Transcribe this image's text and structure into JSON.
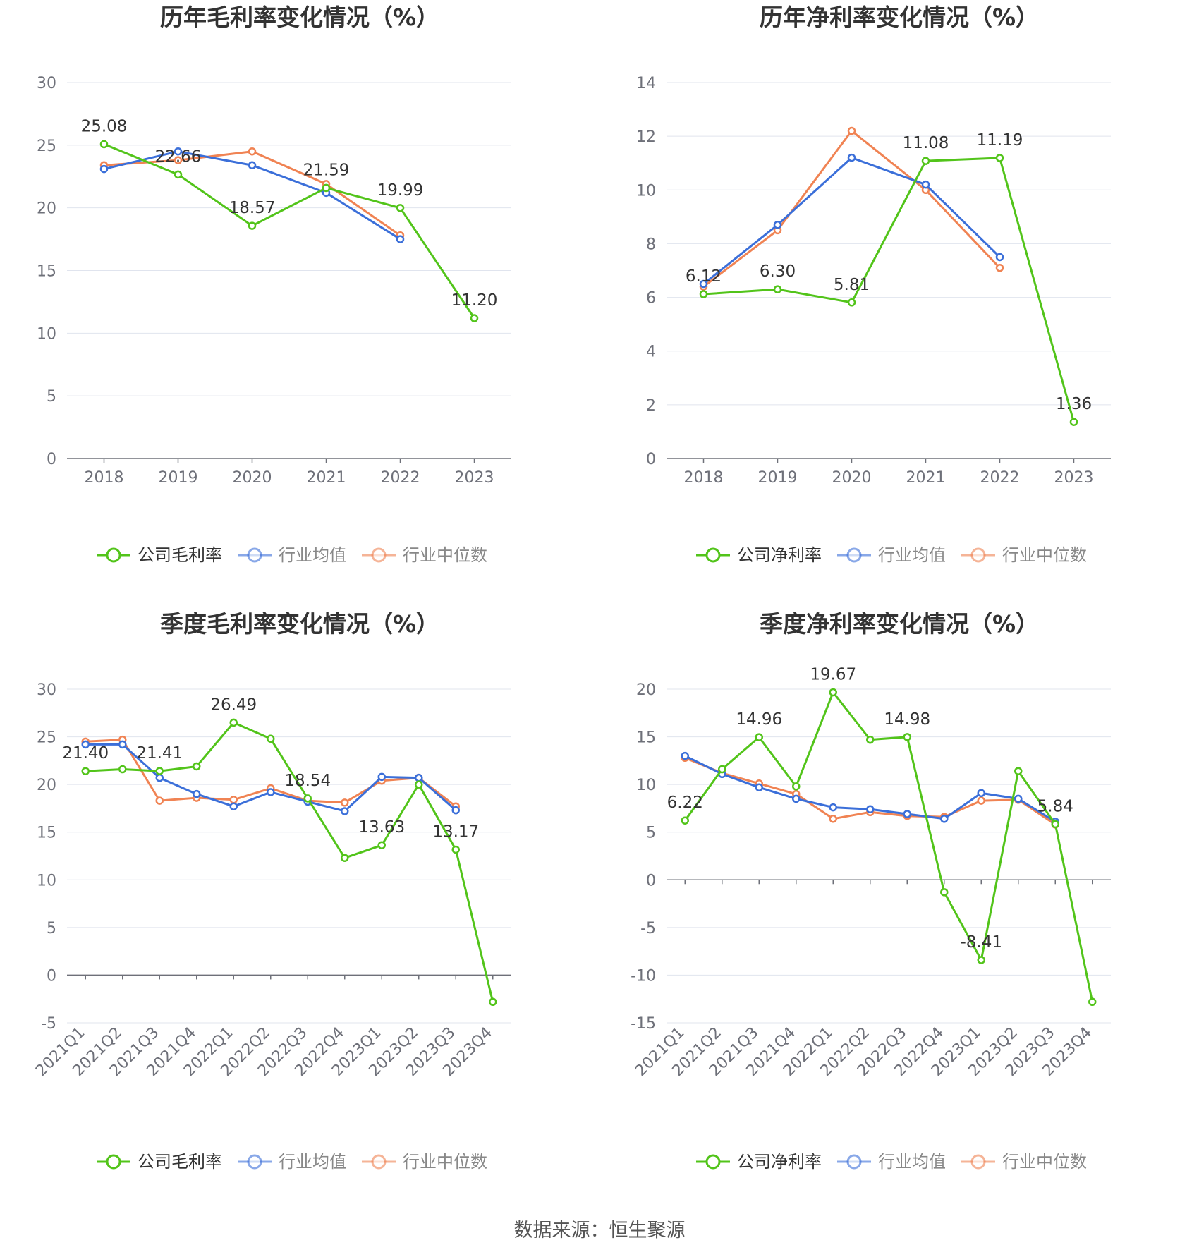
{
  "source_label": "数据来源：恒生聚源",
  "colors": {
    "company": "#52c41a",
    "avg": "#3b6fd9",
    "median": "#f08353",
    "grid": "#e0e4ee",
    "axis": "#6e7079",
    "label": "#333333"
  },
  "chart_data": [
    {
      "id": "annual-gross",
      "type": "line",
      "title": "历年毛利率变化情况（%）",
      "categories": [
        "2018",
        "2019",
        "2020",
        "2021",
        "2022",
        "2023"
      ],
      "ylim": [
        0,
        30
      ],
      "yticks": [
        0,
        5,
        10,
        15,
        20,
        25,
        30
      ],
      "legend_position": "bottom",
      "grid": true,
      "series": [
        {
          "name": "公司毛利率",
          "color": "#52c41a",
          "values": [
            25.08,
            22.66,
            18.57,
            21.59,
            19.99,
            11.2
          ],
          "labels": [
            "25.08",
            "22.66",
            "18.57",
            "21.59",
            "19.99",
            "11.20"
          ]
        },
        {
          "name": "行业均值",
          "color": "#3b6fd9",
          "values": [
            23.1,
            24.5,
            23.4,
            21.2,
            17.5,
            null
          ]
        },
        {
          "name": "行业中位数",
          "color": "#f08353",
          "values": [
            23.4,
            23.8,
            24.5,
            21.9,
            17.8,
            null
          ]
        }
      ]
    },
    {
      "id": "annual-net",
      "type": "line",
      "title": "历年净利率变化情况（%）",
      "categories": [
        "2018",
        "2019",
        "2020",
        "2021",
        "2022",
        "2023"
      ],
      "ylim": [
        0,
        14
      ],
      "yticks": [
        0,
        2,
        4,
        6,
        8,
        10,
        12,
        14
      ],
      "legend_position": "bottom",
      "grid": true,
      "series": [
        {
          "name": "公司净利率",
          "color": "#52c41a",
          "values": [
            6.12,
            6.3,
            5.81,
            11.08,
            11.19,
            1.36
          ],
          "labels": [
            "6.12",
            "6.30",
            "5.81",
            "11.08",
            "11.19",
            "1.36"
          ]
        },
        {
          "name": "行业均值",
          "color": "#3b6fd9",
          "values": [
            6.5,
            8.7,
            11.2,
            10.2,
            7.5,
            null
          ]
        },
        {
          "name": "行业中位数",
          "color": "#f08353",
          "values": [
            6.4,
            8.5,
            12.2,
            10.0,
            7.1,
            null
          ]
        }
      ]
    },
    {
      "id": "quarterly-gross",
      "type": "line",
      "title": "季度毛利率变化情况（%）",
      "categories": [
        "2021Q1",
        "2021Q2",
        "2021Q3",
        "2021Q4",
        "2022Q1",
        "2022Q2",
        "2022Q3",
        "2022Q4",
        "2023Q1",
        "2023Q2",
        "2023Q3",
        "2023Q4"
      ],
      "ylim": [
        -5,
        30
      ],
      "yticks": [
        -5,
        0,
        5,
        10,
        15,
        20,
        25,
        30
      ],
      "legend_position": "bottom",
      "grid": true,
      "series": [
        {
          "name": "公司毛利率",
          "color": "#52c41a",
          "values": [
            21.4,
            21.6,
            21.41,
            21.9,
            26.49,
            24.8,
            18.54,
            12.3,
            13.63,
            20.0,
            13.17,
            -2.8
          ],
          "labels": [
            "21.40",
            "",
            "21.41",
            "",
            "26.49",
            "",
            "18.54",
            "",
            "13.63",
            "",
            "13.17",
            ""
          ]
        },
        {
          "name": "行业均值",
          "color": "#3b6fd9",
          "values": [
            24.2,
            24.2,
            20.7,
            19.0,
            17.7,
            19.2,
            18.2,
            17.2,
            20.8,
            20.7,
            17.3,
            null
          ]
        },
        {
          "name": "行业中位数",
          "color": "#f08353",
          "values": [
            24.5,
            24.7,
            18.3,
            18.6,
            18.4,
            19.6,
            18.3,
            18.1,
            20.4,
            20.7,
            17.7,
            null
          ]
        }
      ]
    },
    {
      "id": "quarterly-net",
      "type": "line",
      "title": "季度净利率变化情况（%）",
      "categories": [
        "2021Q1",
        "2021Q2",
        "2021Q3",
        "2021Q4",
        "2022Q1",
        "2022Q2",
        "2022Q3",
        "2022Q4",
        "2023Q1",
        "2023Q2",
        "2023Q3",
        "2023Q4"
      ],
      "ylim": [
        -15,
        20
      ],
      "yticks": [
        -15,
        -10,
        -5,
        0,
        5,
        10,
        15,
        20
      ],
      "legend_position": "bottom",
      "grid": true,
      "series": [
        {
          "name": "公司净利率",
          "color": "#52c41a",
          "values": [
            6.22,
            11.6,
            14.96,
            9.8,
            19.67,
            14.7,
            14.98,
            -1.3,
            -8.41,
            11.4,
            5.84,
            -12.8
          ],
          "labels": [
            "6.22",
            "",
            "14.96",
            "",
            "19.67",
            "",
            "14.98",
            "",
            "-8.41",
            "",
            "5.84",
            ""
          ]
        },
        {
          "name": "行业均值",
          "color": "#3b6fd9",
          "values": [
            13.0,
            11.1,
            9.7,
            8.5,
            7.6,
            7.4,
            6.9,
            6.4,
            9.1,
            8.5,
            6.1,
            null
          ]
        },
        {
          "name": "行业中位数",
          "color": "#f08353",
          "values": [
            12.8,
            11.2,
            10.1,
            9.0,
            6.4,
            7.1,
            6.7,
            6.6,
            8.3,
            8.4,
            5.8,
            null
          ]
        }
      ]
    }
  ]
}
